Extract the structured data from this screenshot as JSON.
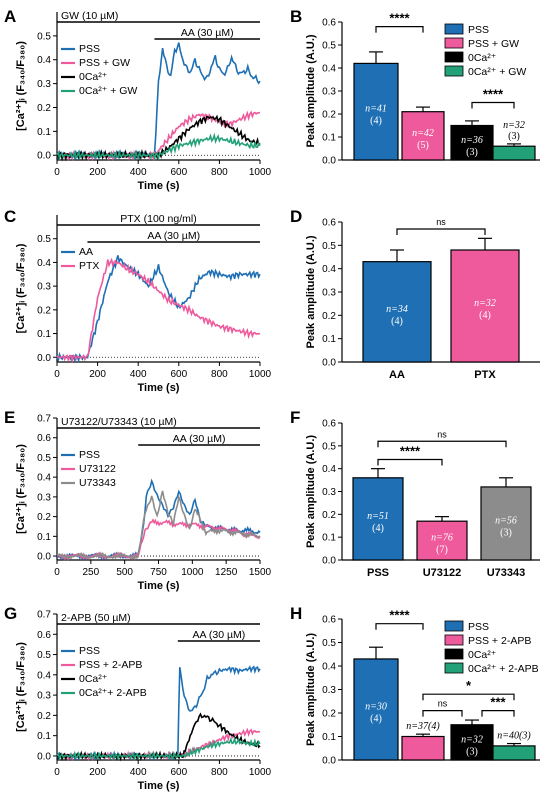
{
  "colors": {
    "pss": "#1f6fb4",
    "pink": "#ee5a9c",
    "black": "#000000",
    "green": "#22a078",
    "gray": "#8c8c8c"
  },
  "ytitle_ca": "[Ca²⁺]ᵢ (F₃₄₀/F₃₈₀)",
  "ytitle_peak": "Peak amplitude (A.U.)",
  "xtitle_time": "Time (s)",
  "chart_data": [
    {
      "panel": "A",
      "type": "line",
      "title": "GW (10 µM)",
      "subtitle": "AA (30 µM)",
      "xlabel": "Time (s)",
      "ylabel": "[Ca²⁺]ᵢ (F₃₄₀/F₃₈₀)",
      "xlim": [
        0,
        1000
      ],
      "ylim": [
        -0.02,
        0.6
      ],
      "xticks": [
        "0",
        "200",
        "400",
        "600",
        "800",
        "1000"
      ],
      "yticks": [
        "0.0",
        "0.1",
        "0.2",
        "0.3",
        "0.4",
        "0.5"
      ],
      "legend_position": "top-left",
      "series": [
        {
          "name": "PSS",
          "color_key": "pss",
          "x": [
            0,
            480,
            500,
            520,
            540,
            560,
            580,
            600,
            620,
            640,
            660,
            680,
            700,
            720,
            740,
            760,
            780,
            800,
            820,
            840,
            860,
            880,
            900,
            920,
            940,
            960,
            980,
            1000
          ],
          "y": [
            0.0,
            0.0,
            0.3,
            0.45,
            0.37,
            0.33,
            0.44,
            0.46,
            0.4,
            0.36,
            0.35,
            0.4,
            0.36,
            0.33,
            0.32,
            0.37,
            0.41,
            0.36,
            0.34,
            0.36,
            0.41,
            0.37,
            0.34,
            0.35,
            0.36,
            0.33,
            0.32,
            0.31
          ]
        },
        {
          "name": "PSS + GW",
          "color_key": "pink",
          "x": [
            0,
            480,
            500,
            550,
            600,
            650,
            700,
            750,
            800,
            850,
            900,
            950,
            1000
          ],
          "y": [
            0.0,
            0.0,
            0.02,
            0.07,
            0.12,
            0.15,
            0.17,
            0.16,
            0.14,
            0.13,
            0.15,
            0.17,
            0.18
          ]
        },
        {
          "name": "0Ca²⁺",
          "color_key": "black",
          "x": [
            0,
            500,
            550,
            600,
            650,
            700,
            750,
            800,
            850,
            900,
            950,
            1000
          ],
          "y": [
            0.0,
            0.0,
            0.03,
            0.07,
            0.11,
            0.14,
            0.16,
            0.15,
            0.12,
            0.09,
            0.06,
            0.05
          ]
        },
        {
          "name": "0Ca²⁺ + GW",
          "color_key": "green",
          "x": [
            0,
            500,
            550,
            600,
            650,
            700,
            750,
            800,
            850,
            900,
            950,
            1000
          ],
          "y": [
            0.0,
            0.0,
            0.02,
            0.04,
            0.05,
            0.06,
            0.07,
            0.07,
            0.06,
            0.05,
            0.04,
            0.04
          ]
        }
      ]
    },
    {
      "panel": "B",
      "type": "bar",
      "ylabel": "Peak amplitude (A.U.)",
      "ylim": [
        0,
        0.6
      ],
      "yticks": [
        "0.0",
        "0.1",
        "0.2",
        "0.3",
        "0.4",
        "0.5",
        "0.6"
      ],
      "legend_position": "top-right",
      "bars": [
        {
          "name": "PSS",
          "value": 0.42,
          "err": 0.05,
          "color_key": "pss",
          "n": "n=41",
          "sub": "(4)",
          "label_inside": true
        },
        {
          "name": "PSS + GW",
          "value": 0.21,
          "err": 0.02,
          "color_key": "pink",
          "n": "n=42",
          "sub": "(5)",
          "label_inside": true
        },
        {
          "name": "0Ca²⁺",
          "value": 0.15,
          "err": 0.02,
          "color_key": "black",
          "n": "n=36",
          "sub": "(3)",
          "label_inside": true
        },
        {
          "name": "0Ca²⁺ + GW",
          "value": 0.06,
          "err": 0.01,
          "color_key": "green",
          "n": "n=32",
          "sub": "(3)",
          "label_inside": false
        }
      ],
      "brackets": [
        {
          "from": 0,
          "to": 1,
          "text": "****"
        },
        {
          "from": 2,
          "to": 3,
          "text": "****"
        }
      ]
    },
    {
      "panel": "C",
      "type": "line",
      "title": "PTX (100 ng/ml)",
      "subtitle": "AA (30 µM)",
      "xlabel": "Time (s)",
      "ylabel": "[Ca²⁺]ᵢ (F₃₄₀/F₃₈₀)",
      "xlim": [
        0,
        1000
      ],
      "ylim": [
        -0.02,
        0.6
      ],
      "xticks": [
        "0",
        "200",
        "400",
        "600",
        "800",
        "1000"
      ],
      "yticks": [
        "0.0",
        "0.1",
        "0.2",
        "0.3",
        "0.4",
        "0.5"
      ],
      "legend_position": "top-left",
      "series": [
        {
          "name": "AA",
          "color_key": "pss",
          "x": [
            0,
            150,
            200,
            250,
            300,
            350,
            400,
            450,
            500,
            550,
            600,
            650,
            700,
            750,
            800,
            850,
            900,
            950,
            1000
          ],
          "y": [
            0.0,
            0.0,
            0.15,
            0.32,
            0.42,
            0.38,
            0.35,
            0.3,
            0.38,
            0.27,
            0.21,
            0.25,
            0.33,
            0.36,
            0.35,
            0.34,
            0.35,
            0.35,
            0.35
          ]
        },
        {
          "name": "PTX",
          "color_key": "pink",
          "x": [
            0,
            150,
            200,
            250,
            300,
            350,
            400,
            450,
            500,
            550,
            600,
            650,
            700,
            750,
            800,
            850,
            900,
            950,
            1000
          ],
          "y": [
            0.0,
            0.0,
            0.25,
            0.4,
            0.4,
            0.37,
            0.35,
            0.32,
            0.28,
            0.24,
            0.22,
            0.2,
            0.17,
            0.15,
            0.13,
            0.12,
            0.11,
            0.1,
            0.1
          ]
        }
      ]
    },
    {
      "panel": "D",
      "type": "bar",
      "ylabel": "Peak amplitude (A.U.)",
      "ylim": [
        0,
        0.6
      ],
      "yticks": [
        "0.0",
        "0.1",
        "0.2",
        "0.3",
        "0.4",
        "0.5",
        "0.6"
      ],
      "categories": [
        "AA",
        "PTX"
      ],
      "bars": [
        {
          "name": "AA",
          "value": 0.43,
          "err": 0.05,
          "color_key": "pss",
          "n": "n=34",
          "sub": "(4)",
          "label_inside": true
        },
        {
          "name": "PTX",
          "value": 0.48,
          "err": 0.05,
          "color_key": "pink",
          "n": "n=32",
          "sub": "(4)",
          "label_inside": true
        }
      ],
      "brackets": [
        {
          "from": 0,
          "to": 1,
          "text": "ns"
        }
      ]
    },
    {
      "panel": "E",
      "type": "line",
      "title": "U73122/U73343 (10 µM)",
      "subtitle": "AA (30 µM)",
      "xlabel": "Time (s)",
      "ylabel": "[Ca²⁺]ᵢ (F₃₄₀/F₃₈₀)",
      "xlim": [
        0,
        1500
      ],
      "ylim": [
        -0.02,
        0.7
      ],
      "xticks": [
        "0",
        "250",
        "500",
        "750",
        "1000",
        "1250",
        "1500"
      ],
      "yticks": [
        "0.0",
        "0.1",
        "0.2",
        "0.3",
        "0.4",
        "0.5",
        "0.6",
        "0.7"
      ],
      "legend_position": "top-left",
      "series": [
        {
          "name": "PSS",
          "color_key": "pss",
          "x": [
            0,
            600,
            640,
            660,
            700,
            740,
            780,
            820,
            860,
            900,
            940,
            980,
            1020,
            1060,
            1100,
            1200,
            1300,
            1400,
            1500
          ],
          "y": [
            0.0,
            0.0,
            0.15,
            0.3,
            0.37,
            0.3,
            0.25,
            0.2,
            0.24,
            0.32,
            0.25,
            0.2,
            0.28,
            0.17,
            0.15,
            0.14,
            0.13,
            0.13,
            0.12
          ]
        },
        {
          "name": "U73122",
          "color_key": "pink",
          "x": [
            0,
            600,
            650,
            700,
            800,
            900,
            1000,
            1100,
            1200,
            1300,
            1400,
            1500
          ],
          "y": [
            0.0,
            0.0,
            0.12,
            0.17,
            0.17,
            0.16,
            0.16,
            0.15,
            0.14,
            0.13,
            0.11,
            0.1
          ]
        },
        {
          "name": "U73343",
          "color_key": "gray",
          "x": [
            0,
            600,
            650,
            700,
            740,
            780,
            820,
            860,
            900,
            940,
            980,
            1020,
            1100,
            1200,
            1300,
            1400,
            1500
          ],
          "y": [
            0.0,
            0.0,
            0.22,
            0.3,
            0.2,
            0.33,
            0.22,
            0.17,
            0.3,
            0.21,
            0.14,
            0.24,
            0.12,
            0.13,
            0.12,
            0.11,
            0.1
          ]
        }
      ]
    },
    {
      "panel": "F",
      "type": "bar",
      "ylabel": "Peak amplitude (A.U.)",
      "ylim": [
        0,
        0.6
      ],
      "yticks": [
        "0.0",
        "0.1",
        "0.2",
        "0.3",
        "0.4",
        "0.5",
        "0.6"
      ],
      "categories": [
        "PSS",
        "U73122",
        "U73343"
      ],
      "bars": [
        {
          "name": "PSS",
          "value": 0.36,
          "err": 0.04,
          "color_key": "pss",
          "n": "n=51",
          "sub": "(4)",
          "label_inside": true
        },
        {
          "name": "U73122",
          "value": 0.17,
          "err": 0.02,
          "color_key": "pink",
          "n": "n=76",
          "sub": "(7)",
          "label_inside": true
        },
        {
          "name": "U73343",
          "value": 0.32,
          "err": 0.04,
          "color_key": "gray",
          "n": "n=56",
          "sub": "(3)",
          "label_inside": true
        }
      ],
      "brackets": [
        {
          "from": 0,
          "to": 1,
          "text": "****"
        },
        {
          "from": 0,
          "to": 2,
          "text": "ns"
        }
      ]
    },
    {
      "panel": "G",
      "type": "line",
      "title": "2-APB (50 µM)",
      "subtitle": "AA (30 µM)",
      "xlabel": "Time (s)",
      "ylabel": "[Ca²⁺]ᵢ (F₃₄₀/F₃₈₀)",
      "xlim": [
        0,
        1000
      ],
      "ylim": [
        -0.02,
        0.7
      ],
      "xticks": [
        "0",
        "200",
        "400",
        "600",
        "800",
        "1000"
      ],
      "yticks": [
        "0.0",
        "0.1",
        "0.2",
        "0.3",
        "0.4",
        "0.5",
        "0.6",
        "0.7"
      ],
      "legend_position": "top-left",
      "series": [
        {
          "name": "PSS",
          "color_key": "pss",
          "x": [
            0,
            595,
            605,
            620,
            640,
            660,
            680,
            700,
            720,
            740,
            760,
            780,
            800,
            850,
            900,
            950,
            1000
          ],
          "y": [
            0.0,
            0.0,
            0.45,
            0.33,
            0.25,
            0.22,
            0.24,
            0.28,
            0.32,
            0.38,
            0.4,
            0.41,
            0.42,
            0.43,
            0.42,
            0.43,
            0.43
          ]
        },
        {
          "name": "PSS + 2-APB",
          "color_key": "pink",
          "x": [
            0,
            600,
            650,
            700,
            750,
            800,
            850,
            900,
            950,
            1000
          ],
          "y": [
            0.0,
            0.0,
            0.02,
            0.04,
            0.06,
            0.08,
            0.1,
            0.11,
            0.12,
            0.12
          ]
        },
        {
          "name": "0Ca²⁺",
          "color_key": "black",
          "x": [
            0,
            620,
            650,
            680,
            700,
            720,
            760,
            800,
            850,
            900,
            950,
            1000
          ],
          "y": [
            0.0,
            0.0,
            0.08,
            0.16,
            0.19,
            0.2,
            0.18,
            0.15,
            0.11,
            0.08,
            0.06,
            0.05
          ]
        },
        {
          "name": "0Ca²⁺+ 2-APB",
          "color_key": "green",
          "x": [
            0,
            620,
            700,
            750,
            800,
            850,
            900,
            950,
            1000
          ],
          "y": [
            0.0,
            0.0,
            0.03,
            0.05,
            0.06,
            0.07,
            0.07,
            0.06,
            0.06
          ]
        }
      ]
    },
    {
      "panel": "H",
      "type": "bar",
      "ylabel": "Peak amplitude (A.U.)",
      "ylim": [
        0,
        0.6
      ],
      "yticks": [
        "0.0",
        "0.1",
        "0.2",
        "0.3",
        "0.4",
        "0.5",
        "0.6"
      ],
      "legend_position": "top-right",
      "bars": [
        {
          "name": "PSS",
          "value": 0.43,
          "err": 0.05,
          "color_key": "pss",
          "n": "n=30",
          "sub": "(4)",
          "label_inside": true
        },
        {
          "name": "PSS + 2-APB",
          "value": 0.1,
          "err": 0.01,
          "color_key": "pink",
          "n": "n=37(4)",
          "sub": "",
          "label_inside": false
        },
        {
          "name": "0Ca²⁺",
          "value": 0.15,
          "err": 0.02,
          "color_key": "black",
          "n": "n=32",
          "sub": "(3)",
          "label_inside": true
        },
        {
          "name": "0Ca²⁺ + 2-APB",
          "value": 0.06,
          "err": 0.01,
          "color_key": "green",
          "n": "n=40(3)",
          "sub": "",
          "label_inside": false
        }
      ],
      "brackets": [
        {
          "from": 0,
          "to": 1,
          "text": "****"
        },
        {
          "from": 1,
          "to": 2,
          "text": "ns"
        },
        {
          "from": 2,
          "to": 3,
          "text": "***"
        },
        {
          "from": 1,
          "to": 3,
          "text": "*"
        }
      ]
    }
  ]
}
